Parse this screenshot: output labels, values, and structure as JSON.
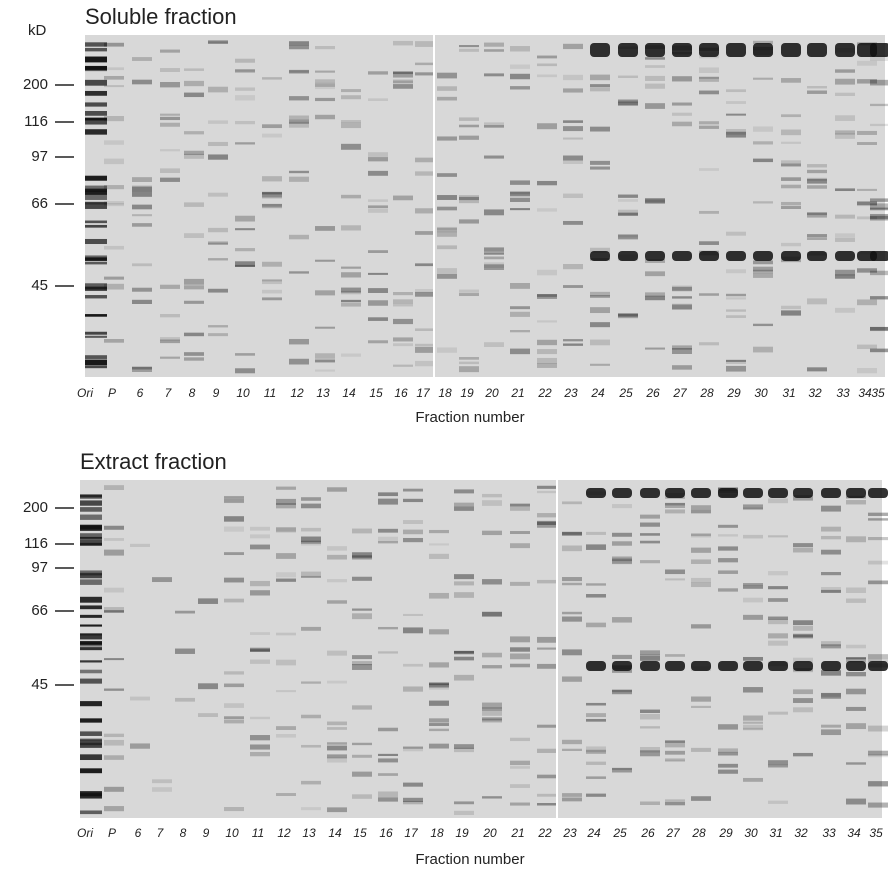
{
  "panels": [
    {
      "title": "Soluble fraction",
      "unit": "kD",
      "markers": [
        200,
        116,
        97,
        66,
        45
      ],
      "lanes": [
        "Ori",
        "P",
        "6",
        "7",
        "8",
        "9",
        "10",
        "11",
        "12",
        "13",
        "14",
        "15",
        "16",
        "17",
        "18",
        "19",
        "20",
        "21",
        "22",
        "23",
        "24",
        "25",
        "26",
        "27",
        "28",
        "29",
        "30",
        "31",
        "32",
        "33",
        "34",
        "35"
      ],
      "x_label": "Fraction number"
    },
    {
      "title": "Extract fraction",
      "markers": [
        200,
        116,
        97,
        66,
        45
      ],
      "lanes": [
        "Ori",
        "P",
        "6",
        "7",
        "8",
        "9",
        "10",
        "11",
        "12",
        "13",
        "14",
        "15",
        "16",
        "17",
        "18",
        "19",
        "20",
        "21",
        "22",
        "23",
        "24",
        "25",
        "26",
        "27",
        "28",
        "29",
        "30",
        "31",
        "32",
        "33",
        "34",
        "35"
      ],
      "x_label": "Fraction number"
    }
  ]
}
